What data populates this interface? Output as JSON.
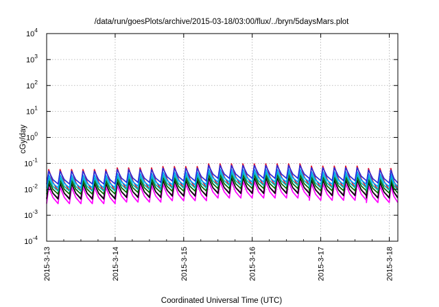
{
  "chart_data": {
    "type": "line",
    "title": "/data/run/goesPlots/archive/2015-03-18/03:00/flux/../bryn/5daysMars.plot",
    "xlabel": "Coordinated Universal Time (UTC)",
    "ylabel": "cGy/day",
    "xlim": [
      "2015-03-13 00:00",
      "2015-03-18 03:00"
    ],
    "ylim": [
      0.0001,
      10000
    ],
    "yscale": "log",
    "grid": true,
    "x_tick_labels": [
      "2015-3-13",
      "2015-3-14",
      "2015-3-15",
      "2015-3-16",
      "2015-3-17",
      "2015-3-18"
    ],
    "y_ticks": [
      {
        "value": 0.0001,
        "base": "10",
        "exp": "-4"
      },
      {
        "value": 0.001,
        "base": "10",
        "exp": "-3"
      },
      {
        "value": 0.01,
        "base": "10",
        "exp": "-2"
      },
      {
        "value": 0.1,
        "base": "10",
        "exp": "-1"
      },
      {
        "value": 1,
        "base": "10",
        "exp": "0"
      },
      {
        "value": 10,
        "base": "10",
        "exp": "1"
      },
      {
        "value": 100,
        "base": "10",
        "exp": "2"
      },
      {
        "value": 1000,
        "base": "10",
        "exp": "3"
      },
      {
        "value": 10000,
        "base": "10",
        "exp": "4"
      }
    ],
    "cycle_hours": 4,
    "segments": [
      {
        "from_day": 0.0,
        "to_day": 1.0,
        "factor": 1.0
      },
      {
        "from_day": 1.0,
        "to_day": 1.6,
        "factor": 1.15
      },
      {
        "from_day": 1.6,
        "to_day": 2.4,
        "factor": 1.3
      },
      {
        "from_day": 2.4,
        "to_day": 3.9,
        "factor": 1.65
      },
      {
        "from_day": 3.9,
        "to_day": 4.6,
        "factor": 1.35
      },
      {
        "from_day": 4.6,
        "to_day": 5.125,
        "factor": 1.1
      }
    ],
    "series": [
      {
        "color": "#ff00ff",
        "peak": 0.012,
        "trough": 0.0028
      },
      {
        "color": "#a0009a",
        "peak": 0.016,
        "trough": 0.0045
      },
      {
        "color": "#0b0b0b",
        "peak": 0.017,
        "trough": 0.0042
      },
      {
        "color": "#e0102a",
        "peak": 0.058,
        "trough": 0.0085
      },
      {
        "color": "#006600",
        "peak": 0.022,
        "trough": 0.0065
      },
      {
        "color": "#00b5b5",
        "peak": 0.028,
        "trough": 0.0085
      },
      {
        "color": "#00a0ff",
        "peak": 0.036,
        "trough": 0.0115
      },
      {
        "color": "#2b2bd6",
        "peak": 0.05,
        "trough": 0.016
      }
    ]
  }
}
